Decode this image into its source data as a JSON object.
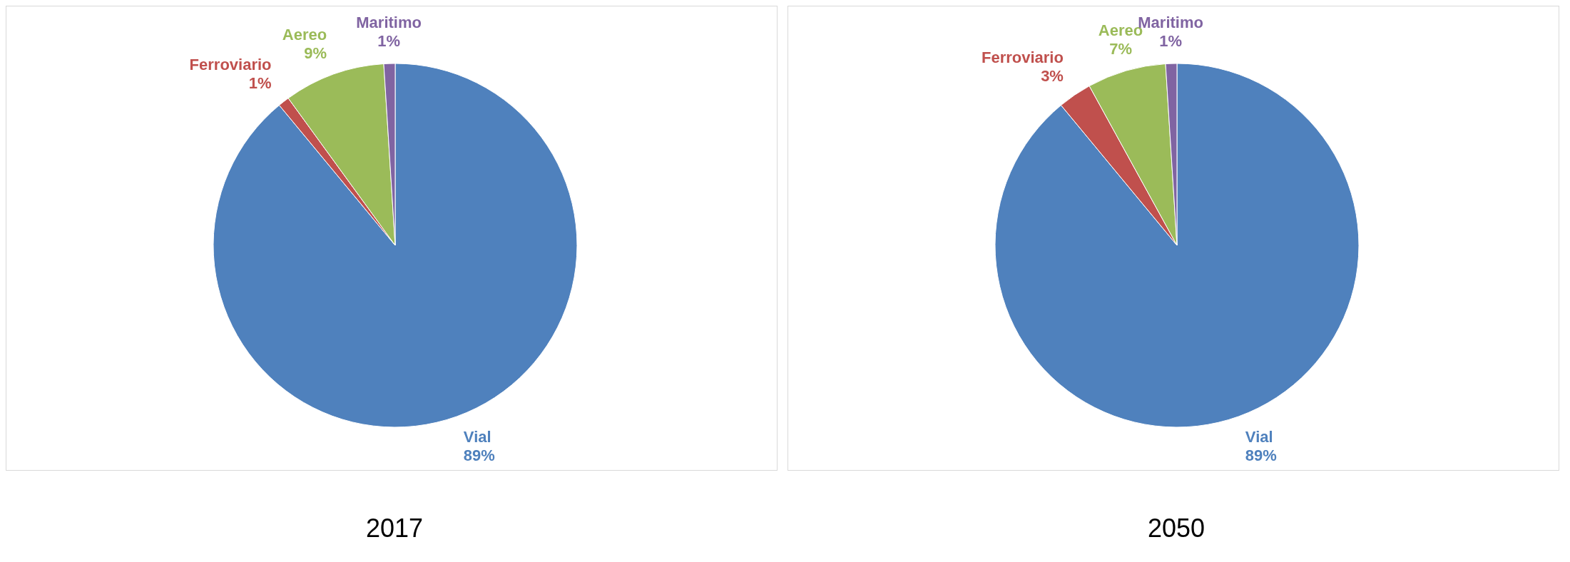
{
  "chart_data": [
    {
      "type": "pie",
      "title": "2017",
      "categories": [
        "Vial",
        "Ferroviario",
        "Aereo",
        "Maritimo"
      ],
      "values": [
        89,
        1,
        9,
        1
      ],
      "colors": [
        "#4f81bd",
        "#c0504d",
        "#9bbb59",
        "#8064a2"
      ],
      "value_labels": [
        "89%",
        "1%",
        "9%",
        "1%"
      ]
    },
    {
      "type": "pie",
      "title": "2050",
      "categories": [
        "Vial",
        "Ferroviario",
        "Aereo",
        "Maritimo"
      ],
      "values": [
        89,
        3,
        7,
        1
      ],
      "colors": [
        "#4f81bd",
        "#c0504d",
        "#9bbb59",
        "#8064a2"
      ],
      "value_labels": [
        "89%",
        "3%",
        "7%",
        "1%"
      ]
    }
  ]
}
